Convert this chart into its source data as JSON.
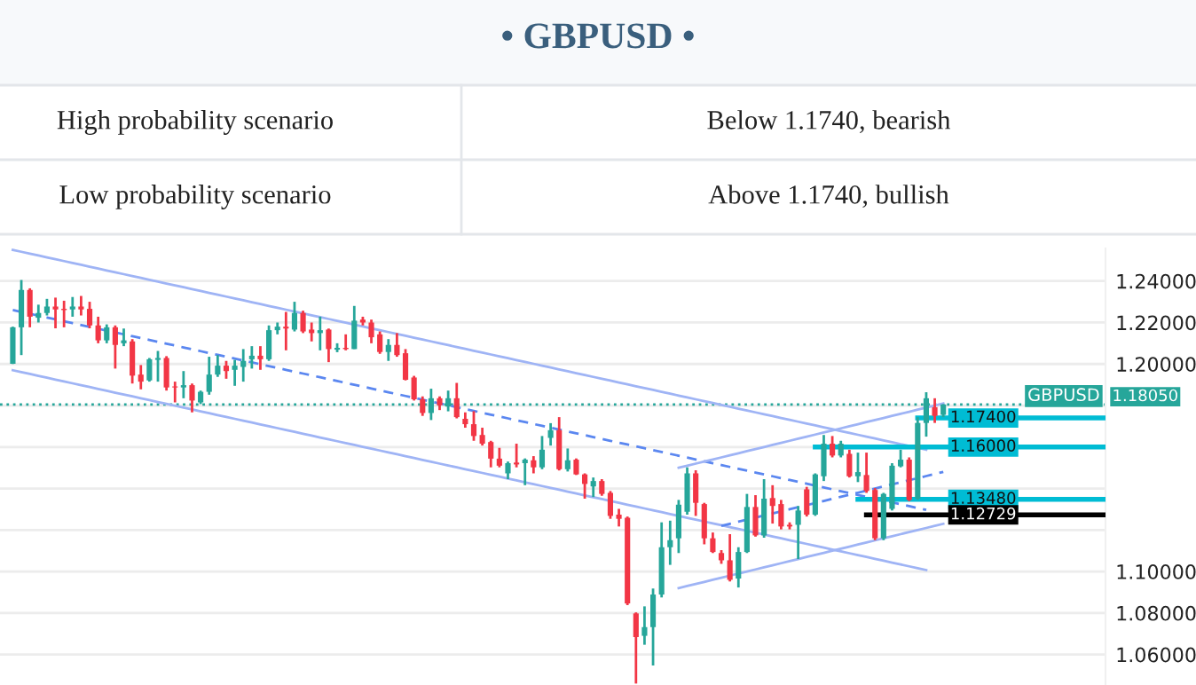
{
  "chart_data": {
    "type": "candlestick",
    "title": "• GBPUSD •",
    "annotations": [
      "High probability scenario",
      "Below 1.1740, bearish",
      "Low probability scenario",
      "Above 1.1740, bullish",
      {
        "text": "GBPUSD",
        "y": 1.1805
      }
    ],
    "categories": [
      null,
      null,
      null,
      null,
      null,
      null,
      null,
      null,
      null,
      null,
      null,
      null,
      null,
      null,
      null,
      null,
      null,
      null,
      null,
      null,
      null,
      null,
      null,
      null,
      null,
      null,
      null,
      null,
      null,
      null,
      null,
      null,
      null,
      null,
      null,
      null,
      null,
      null,
      null,
      null,
      null,
      null,
      null,
      null,
      null,
      null,
      null,
      null,
      null,
      null,
      null,
      null,
      null,
      null,
      null,
      null,
      null,
      null,
      null,
      null,
      null,
      null,
      null,
      null,
      null,
      null,
      null,
      null,
      null,
      null,
      null,
      null,
      null,
      null,
      null,
      null,
      null,
      null,
      null,
      null,
      null,
      null,
      null,
      null,
      null,
      null,
      null,
      null,
      null,
      null,
      null,
      null,
      null,
      null,
      null,
      null,
      null,
      null,
      null,
      null,
      null,
      null,
      null,
      null,
      null,
      null,
      null,
      null,
      null,
      null
    ],
    "ohlc": [
      [
        1.2001,
        1.218,
        1.2,
        1.2177
      ],
      [
        1.2177,
        1.2405,
        1.2043,
        1.2357
      ],
      [
        1.2357,
        1.2365,
        1.2177,
        1.2228
      ],
      [
        1.2223,
        1.2286,
        1.22,
        1.2246
      ],
      [
        1.2246,
        1.2314,
        1.2234,
        1.2277
      ],
      [
        1.2277,
        1.232,
        1.2172,
        1.2263
      ],
      [
        1.2266,
        1.2305,
        1.2177,
        1.226
      ],
      [
        1.2263,
        1.2323,
        1.2228,
        1.2277
      ],
      [
        1.2277,
        1.2328,
        1.2234,
        1.2263
      ],
      [
        1.2266,
        1.23,
        1.2172,
        1.2186
      ],
      [
        1.2186,
        1.2228,
        1.21,
        1.2114
      ],
      [
        1.2114,
        1.2191,
        1.21,
        1.2177
      ],
      [
        1.2177,
        1.2186,
        1.1978,
        1.2092
      ],
      [
        1.21,
        1.2171,
        1.2086,
        1.2114
      ],
      [
        1.2109,
        1.212,
        1.1906,
        1.1944
      ],
      [
        1.1949,
        1.1995,
        1.1878,
        1.1915
      ],
      [
        1.1921,
        1.2029,
        1.1915,
        1.2023
      ],
      [
        1.202,
        1.2063,
        1.1915,
        1.2029
      ],
      [
        1.2029,
        1.2038,
        1.1872,
        1.1887
      ],
      [
        1.1892,
        1.1915,
        1.1815,
        1.1887
      ],
      [
        1.1887,
        1.1966,
        1.1835,
        1.1898
      ],
      [
        1.1898,
        1.1906,
        1.1767,
        1.1824
      ],
      [
        1.1815,
        1.1872,
        1.1807,
        1.1866
      ],
      [
        1.1866,
        1.2035,
        1.1852,
        1.1949
      ],
      [
        1.1949,
        1.2043,
        1.1938,
        1.1992
      ],
      [
        1.1992,
        1.2015,
        1.1929,
        1.1966
      ],
      [
        1.1972,
        1.202,
        1.1895,
        1.1992
      ],
      [
        1.1986,
        1.2072,
        1.1915,
        1.2015
      ],
      [
        1.2023,
        1.2086,
        1.1978,
        1.204
      ],
      [
        1.204,
        1.2086,
        1.1972,
        1.2023
      ],
      [
        1.2023,
        1.2186,
        1.2015,
        1.2163
      ],
      [
        1.2163,
        1.22,
        1.2143,
        1.218
      ],
      [
        1.218,
        1.2251,
        1.2066,
        1.2171
      ],
      [
        1.2166,
        1.23,
        1.2157,
        1.2246
      ],
      [
        1.2246,
        1.2257,
        1.2149,
        1.2157
      ],
      [
        1.2166,
        1.22,
        1.2109,
        1.2149
      ],
      [
        1.2149,
        1.2228,
        1.2066,
        1.2163
      ],
      [
        1.2166,
        1.2171,
        1.2009,
        1.2072
      ],
      [
        1.2069,
        1.21,
        1.2057,
        1.2078
      ],
      [
        1.2078,
        1.2143,
        1.2066,
        1.2072
      ],
      [
        1.2072,
        1.228,
        1.2072,
        1.2209
      ],
      [
        1.2214,
        1.2228,
        1.2186,
        1.22
      ],
      [
        1.22,
        1.2214,
        1.21,
        1.2129
      ],
      [
        1.2143,
        1.2157,
        1.2049,
        1.2058
      ],
      [
        1.2058,
        1.212,
        1.2015,
        1.2092
      ],
      [
        1.2092,
        1.2149,
        1.2035,
        1.2043
      ],
      [
        1.2052,
        1.2072,
        1.1921,
        1.1924
      ],
      [
        1.1935,
        1.1943,
        1.1824,
        1.183
      ],
      [
        1.183,
        1.1844,
        1.175,
        1.1764
      ],
      [
        1.1764,
        1.1881,
        1.173,
        1.1835
      ],
      [
        1.1835,
        1.1844,
        1.1778,
        1.1801
      ],
      [
        1.1795,
        1.1872,
        1.1772,
        1.1835
      ],
      [
        1.1835,
        1.1909,
        1.1738,
        1.1744
      ],
      [
        1.1736,
        1.1767,
        1.1693,
        1.171
      ],
      [
        1.171,
        1.1773,
        1.163,
        1.1653
      ],
      [
        1.1658,
        1.1693,
        1.1607,
        1.1616
      ],
      [
        1.1624,
        1.163,
        1.1502,
        1.1544
      ],
      [
        1.1544,
        1.1596,
        1.1502,
        1.151
      ],
      [
        1.1473,
        1.153,
        1.1445,
        1.1522
      ],
      [
        1.1525,
        1.1616,
        1.1502,
        1.1516
      ],
      [
        1.1522,
        1.1545,
        1.1416,
        1.1539
      ],
      [
        1.1536,
        1.1556,
        1.1473,
        1.1502
      ],
      [
        1.1502,
        1.1653,
        1.1493,
        1.1587
      ],
      [
        1.1644,
        1.1715,
        1.1607,
        1.1681
      ],
      [
        1.1681,
        1.1744,
        1.1487,
        1.1493
      ],
      [
        1.1493,
        1.1593,
        1.1482,
        1.1536
      ],
      [
        1.1539,
        1.1545,
        1.1465,
        1.1468
      ],
      [
        1.1468,
        1.1473,
        1.1351,
        1.1422
      ],
      [
        1.141,
        1.1453,
        1.1359,
        1.1436
      ],
      [
        1.1436,
        1.1445,
        1.1365,
        1.1374
      ],
      [
        1.1379,
        1.1388,
        1.1254,
        1.1268
      ],
      [
        1.1274,
        1.1302,
        1.1217,
        1.1254
      ],
      [
        1.1259,
        1.1265,
        1.0838,
        1.0846
      ],
      [
        1.0798,
        1.0803,
        1.046,
        1.0684
      ],
      [
        1.069,
        1.0832,
        1.0647,
        1.0732
      ],
      [
        1.0732,
        1.0918,
        1.0547,
        1.0889
      ],
      [
        1.0889,
        1.1237,
        1.0875,
        1.1117
      ],
      [
        1.1117,
        1.1245,
        1.1032,
        1.1151
      ],
      [
        1.116,
        1.1345,
        1.1089,
        1.1322
      ],
      [
        1.1288,
        1.1502,
        1.1274,
        1.1473
      ],
      [
        1.1473,
        1.1488,
        1.1268,
        1.1331
      ],
      [
        1.1325,
        1.1331,
        1.1131,
        1.116
      ],
      [
        1.116,
        1.1188,
        1.1089,
        1.1094
      ],
      [
        1.1089,
        1.1103,
        1.1037,
        1.1054
      ],
      [
        1.1054,
        1.118,
        1.0952,
        1.096
      ],
      [
        1.0966,
        1.1117,
        1.0923,
        1.1094
      ],
      [
        1.1094,
        1.1374,
        1.1089,
        1.1311
      ],
      [
        1.1311,
        1.1368,
        1.1168,
        1.1174
      ],
      [
        1.1174,
        1.1445,
        1.1163,
        1.1351
      ],
      [
        1.1354,
        1.1416,
        1.1231,
        1.1316
      ],
      [
        1.1325,
        1.1345,
        1.1203,
        1.1217
      ],
      [
        1.1225,
        1.1237,
        1.1203,
        1.1217
      ],
      [
        1.1225,
        1.1316,
        1.106,
        1.1294
      ],
      [
        1.1396,
        1.1408,
        1.1265,
        1.1274
      ],
      [
        1.1274,
        1.1473,
        1.1268,
        1.1468
      ],
      [
        1.1459,
        1.1658,
        1.1436,
        1.1616
      ],
      [
        1.1616,
        1.1653,
        1.155,
        1.1559
      ],
      [
        1.1559,
        1.163,
        1.155,
        1.1616
      ],
      [
        1.1567,
        1.1587,
        1.1453,
        1.1459
      ],
      [
        1.1459,
        1.1573,
        1.1431,
        1.1479
      ],
      [
        1.1465,
        1.1573,
        1.1379,
        1.1388
      ],
      [
        1.1393,
        1.1402,
        1.1151,
        1.116
      ],
      [
        1.116,
        1.1379,
        1.1151,
        1.1374
      ],
      [
        1.1302,
        1.1522,
        1.1294,
        1.151
      ],
      [
        1.1507,
        1.1587,
        1.1502,
        1.1539
      ],
      [
        1.1539,
        1.155,
        1.1339,
        1.1345
      ],
      [
        1.1351,
        1.1744,
        1.1345,
        1.1716
      ],
      [
        1.1716,
        1.1864,
        1.165,
        1.1835
      ],
      [
        1.1792,
        1.1835,
        1.1716,
        1.175
      ],
      [
        1.1755,
        1.1807,
        1.1744,
        1.1805
      ]
    ],
    "colors": [
      "#26a69a",
      "#26a69a",
      "#f23645",
      "#26a69a",
      "#26a69a",
      "#f23645",
      "#f23645",
      "#26a69a",
      "#f23645",
      "#f23645",
      "#f23645",
      "#26a69a",
      "#f23645",
      "#26a69a",
      "#f23645",
      "#f23645",
      "#26a69a",
      "#26a69a",
      "#f23645",
      "#f23645",
      "#26a69a",
      "#f23645",
      "#26a69a",
      "#26a69a",
      "#26a69a",
      "#f23645",
      "#26a69a",
      "#26a69a",
      "#26a69a",
      "#f23645",
      "#26a69a",
      "#26a69a",
      "#f23645",
      "#26a69a",
      "#f23645",
      "#f23645",
      "#26a69a",
      "#f23645",
      "#26a69a",
      "#f23645",
      "#26a69a",
      "#f23645",
      "#f23645",
      "#f23645",
      "#26a69a",
      "#f23645",
      "#f23645",
      "#f23645",
      "#f23645",
      "#26a69a",
      "#f23645",
      "#26a69a",
      "#f23645",
      "#f23645",
      "#f23645",
      "#f23645",
      "#f23645",
      "#f23645",
      "#26a69a",
      "#f23645",
      "#26a69a",
      "#f23645",
      "#26a69a",
      "#26a69a",
      "#f23645",
      "#26a69a",
      "#f23645",
      "#f23645",
      "#26a69a",
      "#f23645",
      "#f23645",
      "#f23645",
      "#f23645",
      "#f23645",
      "#26a69a",
      "#26a69a",
      "#26a69a",
      "#26a69a",
      "#26a69a",
      "#26a69a",
      "#f23645",
      "#f23645",
      "#f23645",
      "#f23645",
      "#f23645",
      "#26a69a",
      "#26a69a",
      "#f23645",
      "#26a69a",
      "#f23645",
      "#f23645",
      "#f23645",
      "#26a69a",
      "#f23645",
      "#26a69a",
      "#26a69a",
      "#f23645",
      "#26a69a",
      "#f23645",
      "#26a69a",
      "#f23645",
      "#f23645",
      "#26a69a",
      "#26a69a",
      "#26a69a",
      "#f23645",
      "#26a69a",
      "#26a69a",
      "#f23645",
      "#26a69a"
    ],
    "series": [
      {
        "type": "line",
        "color": "#9fb4f5",
        "values": [
          1.255,
          1.2541,
          1.2532,
          1.2523,
          1.2514,
          1.2505,
          1.2496,
          1.2487,
          1.2478,
          1.2469,
          1.246,
          1.2451,
          1.2442,
          1.2433,
          1.2424,
          1.2415,
          1.2406,
          1.2397,
          1.2388,
          1.2379,
          1.237,
          1.2361,
          1.2352,
          1.2343,
          1.2334,
          1.2325,
          1.2316,
          1.2307,
          1.2298,
          1.2289,
          1.228,
          1.2271,
          1.2262,
          1.2253,
          1.2244,
          1.2235,
          1.2226,
          1.2217,
          1.2208,
          1.2199,
          1.219,
          1.2181,
          1.2172,
          1.2163,
          1.2154,
          1.2145,
          1.2136,
          1.2127,
          1.2118,
          1.2109,
          1.21,
          1.2091,
          1.2082,
          1.2073,
          1.2064,
          1.2055,
          1.2046,
          1.2037,
          1.2028,
          1.2019,
          1.201,
          1.2001,
          1.1992,
          1.1983,
          1.1974,
          1.1965,
          1.1956,
          1.1947,
          1.1938,
          1.1929,
          1.192,
          1.1911,
          1.1902,
          1.1893,
          1.1884,
          1.1875,
          1.1866,
          1.1857,
          1.1848,
          1.1839,
          1.183,
          1.1821,
          1.1812,
          1.1803,
          1.1794,
          1.1785,
          1.1776,
          1.1767,
          1.1758,
          1.1749,
          1.174,
          1.1731,
          1.1722,
          1.1713,
          1.1704,
          1.1695,
          1.1686,
          1.1677,
          1.1668,
          1.1659,
          1.165,
          1.1641,
          1.1632,
          1.1623,
          1.1614,
          1.1605,
          1.1596,
          1.1587,
          null,
          null
        ]
      },
      {
        "type": "line",
        "color": "#9fb4f5",
        "values": [
          1.197,
          1.1961,
          1.1952,
          1.1943,
          1.1934,
          1.1925,
          1.1916,
          1.1907,
          1.1898,
          1.1889,
          1.188,
          1.1871,
          1.1862,
          1.1853,
          1.1844,
          1.1835,
          1.1826,
          1.1817,
          1.1808,
          1.1799,
          1.179,
          1.1781,
          1.1772,
          1.1763,
          1.1754,
          1.1745,
          1.1736,
          1.1727,
          1.1718,
          1.1709,
          1.17,
          1.1691,
          1.1682,
          1.1673,
          1.1664,
          1.1655,
          1.1646,
          1.1637,
          1.1628,
          1.1619,
          1.161,
          1.1601,
          1.1592,
          1.1583,
          1.1574,
          1.1565,
          1.1556,
          1.1547,
          1.1538,
          1.1529,
          1.152,
          1.1511,
          1.1502,
          1.1493,
          1.1484,
          1.1475,
          1.1466,
          1.1457,
          1.1448,
          1.1439,
          1.143,
          1.1421,
          1.1412,
          1.1403,
          1.1394,
          1.1385,
          1.1376,
          1.1367,
          1.1358,
          1.1349,
          1.134,
          1.1331,
          1.1322,
          1.1313,
          1.1304,
          1.1295,
          1.1286,
          1.1277,
          1.1268,
          1.1259,
          1.125,
          1.1241,
          1.1232,
          1.1223,
          1.1214,
          1.1205,
          1.1196,
          1.1187,
          1.1178,
          1.1169,
          1.116,
          1.1151,
          1.1142,
          1.1133,
          1.1124,
          1.1115,
          1.1106,
          1.1097,
          1.1088,
          1.1079,
          1.107,
          1.1061,
          1.1052,
          1.1043,
          1.1034,
          1.1025,
          1.1016,
          1.1007,
          null,
          null
        ]
      },
      {
        "type": "line",
        "color": "#5b87f0",
        "line_style": "dashed",
        "values": [
          1.226,
          1.2251,
          1.2242,
          1.2233,
          1.2224,
          1.2215,
          1.2206,
          1.2197,
          1.2188,
          1.2179,
          1.217,
          1.2161,
          1.2152,
          1.2143,
          1.2134,
          1.2125,
          1.2116,
          1.2107,
          1.2098,
          1.2089,
          1.208,
          1.2071,
          1.2062,
          1.2053,
          1.2044,
          1.2035,
          1.2026,
          1.2017,
          1.2008,
          1.1999,
          1.199,
          1.1981,
          1.1972,
          1.1963,
          1.1954,
          1.1945,
          1.1936,
          1.1927,
          1.1918,
          1.1909,
          1.19,
          1.1891,
          1.1882,
          1.1873,
          1.1864,
          1.1855,
          1.1846,
          1.1837,
          1.1828,
          1.1819,
          1.181,
          1.1801,
          1.1792,
          1.1783,
          1.1774,
          1.1765,
          1.1756,
          1.1747,
          1.1738,
          1.1729,
          1.172,
          1.1711,
          1.1702,
          1.1693,
          1.1684,
          1.1675,
          1.1666,
          1.1657,
          1.1648,
          1.1639,
          1.163,
          1.1621,
          1.1612,
          1.1603,
          1.1594,
          1.1585,
          1.1576,
          1.1567,
          1.1558,
          1.1549,
          1.154,
          1.1531,
          1.1522,
          1.1513,
          1.1504,
          1.1495,
          1.1486,
          1.1477,
          1.1468,
          1.1459,
          1.145,
          1.1441,
          1.1432,
          1.1423,
          1.1414,
          1.1405,
          1.1396,
          1.1387,
          1.1378,
          1.1369,
          1.136,
          null,
          null,
          1.1333,
          1.1324,
          1.1315,
          1.1306,
          1.1297,
          null,
          null
        ]
      },
      {
        "type": "line",
        "color": "#9fb4f5",
        "values": [
          null,
          null,
          null,
          null,
          null,
          null,
          null,
          null,
          null,
          null,
          null,
          null,
          null,
          null,
          null,
          null,
          null,
          null,
          null,
          null,
          null,
          null,
          null,
          null,
          null,
          null,
          null,
          null,
          null,
          null,
          null,
          null,
          null,
          null,
          null,
          null,
          null,
          null,
          null,
          null,
          null,
          null,
          null,
          null,
          null,
          null,
          null,
          null,
          null,
          null,
          null,
          null,
          null,
          null,
          null,
          null,
          null,
          null,
          null,
          null,
          null,
          null,
          null,
          null,
          null,
          null,
          null,
          null,
          null,
          null,
          null,
          null,
          null,
          null,
          null,
          null,
          null,
          null,
          1.092,
          1.093,
          1.094,
          1.095,
          1.096,
          1.097,
          1.098,
          1.099,
          1.1,
          1.101,
          1.102,
          1.103,
          1.104,
          1.105,
          1.106,
          1.107,
          1.108,
          1.109,
          1.11,
          1.111,
          1.112,
          1.113,
          1.114,
          1.115,
          1.116,
          1.117,
          1.118,
          1.119,
          1.12,
          1.121,
          1.122,
          1.123
        ]
      },
      {
        "type": "line",
        "color": "#9fb4f5",
        "values": [
          null,
          null,
          null,
          null,
          null,
          null,
          null,
          null,
          null,
          null,
          null,
          null,
          null,
          null,
          null,
          null,
          null,
          null,
          null,
          null,
          null,
          null,
          null,
          null,
          null,
          null,
          null,
          null,
          null,
          null,
          null,
          null,
          null,
          null,
          null,
          null,
          null,
          null,
          null,
          null,
          null,
          null,
          null,
          null,
          null,
          null,
          null,
          null,
          null,
          null,
          null,
          null,
          null,
          null,
          null,
          null,
          null,
          null,
          null,
          null,
          null,
          null,
          null,
          null,
          null,
          null,
          null,
          null,
          null,
          null,
          null,
          null,
          null,
          null,
          null,
          null,
          null,
          null,
          1.15,
          1.151,
          1.152,
          1.153,
          1.154,
          1.155,
          1.156,
          1.157,
          1.158,
          1.159,
          1.16,
          1.161,
          1.162,
          1.163,
          1.164,
          1.165,
          1.166,
          1.167,
          1.168,
          1.169,
          1.17,
          1.171,
          1.172,
          1.173,
          1.174,
          1.175,
          1.176,
          1.177,
          1.178,
          1.179,
          1.18,
          1.181
        ]
      },
      {
        "type": "line",
        "color": "#5b87f0",
        "line_style": "dashed",
        "values": [
          null,
          null,
          null,
          null,
          null,
          null,
          null,
          null,
          null,
          null,
          null,
          null,
          null,
          null,
          null,
          null,
          null,
          null,
          null,
          null,
          null,
          null,
          null,
          null,
          null,
          null,
          null,
          null,
          null,
          null,
          null,
          null,
          null,
          null,
          null,
          null,
          null,
          null,
          null,
          null,
          null,
          null,
          null,
          null,
          null,
          null,
          null,
          null,
          null,
          null,
          null,
          null,
          null,
          null,
          null,
          null,
          null,
          null,
          null,
          null,
          null,
          null,
          null,
          null,
          null,
          null,
          null,
          null,
          null,
          null,
          null,
          null,
          null,
          null,
          null,
          null,
          null,
          null,
          null,
          null,
          null,
          null,
          null,
          1.122,
          1.123,
          1.124,
          1.125,
          1.126,
          1.127,
          1.128,
          1.129,
          1.13,
          1.131,
          1.132,
          1.133,
          1.134,
          1.135,
          1.136,
          1.137,
          1.138,
          1.139,
          1.14,
          1.141,
          1.142,
          1.143,
          1.144,
          1.145,
          1.146,
          1.147,
          1.148
        ]
      },
      {
        "type": "line",
        "color": "#00bcd4",
        "values": [
          null,
          null,
          null,
          null,
          null,
          null,
          null,
          null,
          null,
          null,
          null,
          null,
          null,
          null,
          null,
          null,
          null,
          null,
          null,
          null,
          null,
          null,
          null,
          null,
          null,
          null,
          null,
          null,
          null,
          null,
          null,
          null,
          null,
          null,
          null,
          null,
          null,
          null,
          null,
          null,
          null,
          null,
          null,
          null,
          null,
          null,
          null,
          null,
          null,
          null,
          null,
          null,
          null,
          null,
          null,
          null,
          null,
          null,
          null,
          null,
          null,
          null,
          null,
          null,
          null,
          null,
          null,
          null,
          null,
          null,
          null,
          null,
          null,
          null,
          null,
          null,
          null,
          null,
          null,
          null,
          null,
          null,
          null,
          null,
          null,
          null,
          null,
          null,
          null,
          null,
          null,
          null,
          null,
          null,
          null,
          null,
          null,
          null,
          null,
          null,
          null,
          null,
          null,
          null,
          null,
          null,
          1.174,
          1.174,
          1.174,
          1.174
        ],
        "value_labels": [
          null,
          null,
          null,
          null,
          null,
          null,
          null,
          null,
          null,
          null,
          null,
          null,
          null,
          null,
          null,
          null,
          null,
          null,
          null,
          null,
          null,
          null,
          null,
          null,
          null,
          null,
          null,
          null,
          null,
          null,
          null,
          null,
          null,
          null,
          null,
          null,
          null,
          null,
          null,
          null,
          null,
          null,
          null,
          null,
          null,
          null,
          null,
          null,
          null,
          null,
          null,
          null,
          null,
          null,
          null,
          null,
          null,
          null,
          null,
          null,
          null,
          null,
          null,
          null,
          null,
          null,
          null,
          null,
          null,
          null,
          null,
          null,
          null,
          null,
          null,
          null,
          null,
          null,
          null,
          null,
          null,
          null,
          null,
          null,
          null,
          null,
          null,
          null,
          null,
          null,
          null,
          null,
          null,
          null,
          null,
          null,
          null,
          null,
          null,
          null,
          null,
          null,
          null,
          null,
          null,
          null,
          null,
          null,
          null,
          "1.17400"
        ]
      },
      {
        "type": "line",
        "color": "#00bcd4",
        "values": [
          null,
          null,
          null,
          null,
          null,
          null,
          null,
          null,
          null,
          null,
          null,
          null,
          null,
          null,
          null,
          null,
          null,
          null,
          null,
          null,
          null,
          null,
          null,
          null,
          null,
          null,
          null,
          null,
          null,
          null,
          null,
          null,
          null,
          null,
          null,
          null,
          null,
          null,
          null,
          null,
          null,
          null,
          null,
          null,
          null,
          null,
          null,
          null,
          null,
          null,
          null,
          null,
          null,
          null,
          null,
          null,
          null,
          null,
          null,
          null,
          null,
          null,
          null,
          null,
          null,
          null,
          null,
          null,
          null,
          null,
          null,
          null,
          null,
          null,
          null,
          null,
          null,
          null,
          null,
          null,
          null,
          null,
          null,
          null,
          null,
          null,
          null,
          null,
          null,
          null,
          null,
          null,
          null,
          null,
          1.16,
          1.16,
          1.16,
          1.16,
          1.16,
          1.16,
          1.16,
          1.16,
          1.16,
          1.16,
          1.16,
          1.16,
          1.16,
          1.16,
          1.16,
          1.16
        ],
        "value_labels": [
          null,
          null,
          null,
          null,
          null,
          null,
          null,
          null,
          null,
          null,
          null,
          null,
          null,
          null,
          null,
          null,
          null,
          null,
          null,
          null,
          null,
          null,
          null,
          null,
          null,
          null,
          null,
          null,
          null,
          null,
          null,
          null,
          null,
          null,
          null,
          null,
          null,
          null,
          null,
          null,
          null,
          null,
          null,
          null,
          null,
          null,
          null,
          null,
          null,
          null,
          null,
          null,
          null,
          null,
          null,
          null,
          null,
          null,
          null,
          null,
          null,
          null,
          null,
          null,
          null,
          null,
          null,
          null,
          null,
          null,
          null,
          null,
          null,
          null,
          null,
          null,
          null,
          null,
          null,
          null,
          null,
          null,
          null,
          null,
          null,
          null,
          null,
          null,
          null,
          null,
          null,
          null,
          null,
          null,
          null,
          null,
          null,
          null,
          null,
          null,
          null,
          null,
          null,
          null,
          null,
          null,
          null,
          null,
          null,
          "1.16000"
        ]
      },
      {
        "type": "line",
        "color": "#00bcd4",
        "values": [
          null,
          null,
          null,
          null,
          null,
          null,
          null,
          null,
          null,
          null,
          null,
          null,
          null,
          null,
          null,
          null,
          null,
          null,
          null,
          null,
          null,
          null,
          null,
          null,
          null,
          null,
          null,
          null,
          null,
          null,
          null,
          null,
          null,
          null,
          null,
          null,
          null,
          null,
          null,
          null,
          null,
          null,
          null,
          null,
          null,
          null,
          null,
          null,
          null,
          null,
          null,
          null,
          null,
          null,
          null,
          null,
          null,
          null,
          null,
          null,
          null,
          null,
          null,
          null,
          null,
          null,
          null,
          null,
          null,
          null,
          null,
          null,
          null,
          null,
          null,
          null,
          null,
          null,
          null,
          null,
          null,
          null,
          null,
          null,
          null,
          null,
          null,
          null,
          null,
          null,
          null,
          null,
          null,
          null,
          null,
          null,
          null,
          null,
          null,
          1.1348,
          1.1348,
          1.1348,
          1.1348,
          1.1348,
          1.1348,
          1.1348,
          1.1348,
          1.1348,
          1.1348,
          1.1348
        ],
        "value_labels": [
          null,
          null,
          null,
          null,
          null,
          null,
          null,
          null,
          null,
          null,
          null,
          null,
          null,
          null,
          null,
          null,
          null,
          null,
          null,
          null,
          null,
          null,
          null,
          null,
          null,
          null,
          null,
          null,
          null,
          null,
          null,
          null,
          null,
          null,
          null,
          null,
          null,
          null,
          null,
          null,
          null,
          null,
          null,
          null,
          null,
          null,
          null,
          null,
          null,
          null,
          null,
          null,
          null,
          null,
          null,
          null,
          null,
          null,
          null,
          null,
          null,
          null,
          null,
          null,
          null,
          null,
          null,
          null,
          null,
          null,
          null,
          null,
          null,
          null,
          null,
          null,
          null,
          null,
          null,
          null,
          null,
          null,
          null,
          null,
          null,
          null,
          null,
          null,
          null,
          null,
          null,
          null,
          null,
          null,
          null,
          null,
          null,
          null,
          null,
          null,
          null,
          null,
          null,
          null,
          null,
          null,
          null,
          null,
          null,
          "1.13480"
        ]
      },
      {
        "type": "line",
        "color": "#000000",
        "values": [
          null,
          null,
          null,
          null,
          null,
          null,
          null,
          null,
          null,
          null,
          null,
          null,
          null,
          null,
          null,
          null,
          null,
          null,
          null,
          null,
          null,
          null,
          null,
          null,
          null,
          null,
          null,
          null,
          null,
          null,
          null,
          null,
          null,
          null,
          null,
          null,
          null,
          null,
          null,
          null,
          null,
          null,
          null,
          null,
          null,
          null,
          null,
          null,
          null,
          null,
          null,
          null,
          null,
          null,
          null,
          null,
          null,
          null,
          null,
          null,
          null,
          null,
          null,
          null,
          null,
          null,
          null,
          null,
          null,
          null,
          null,
          null,
          null,
          null,
          null,
          null,
          null,
          null,
          null,
          null,
          null,
          null,
          null,
          null,
          null,
          null,
          null,
          null,
          null,
          null,
          null,
          null,
          null,
          null,
          null,
          null,
          null,
          null,
          null,
          null,
          1.12729,
          1.12729,
          1.12729,
          1.12729,
          1.12729,
          1.12729,
          1.12729,
          1.12729,
          1.12729,
          1.12729
        ],
        "value_labels": [
          null,
          null,
          null,
          null,
          null,
          null,
          null,
          null,
          null,
          null,
          null,
          null,
          null,
          null,
          null,
          null,
          null,
          null,
          null,
          null,
          null,
          null,
          null,
          null,
          null,
          null,
          null,
          null,
          null,
          null,
          null,
          null,
          null,
          null,
          null,
          null,
          null,
          null,
          null,
          null,
          null,
          null,
          null,
          null,
          null,
          null,
          null,
          null,
          null,
          null,
          null,
          null,
          null,
          null,
          null,
          null,
          null,
          null,
          null,
          null,
          null,
          null,
          null,
          null,
          null,
          null,
          null,
          null,
          null,
          null,
          null,
          null,
          null,
          null,
          null,
          null,
          null,
          null,
          null,
          null,
          null,
          null,
          null,
          null,
          null,
          null,
          null,
          null,
          null,
          null,
          null,
          null,
          null,
          null,
          null,
          null,
          null,
          null,
          null,
          null,
          null,
          null,
          null,
          null,
          null,
          null,
          null,
          null,
          null,
          "1.12729"
        ]
      }
    ],
    "ref_lines": [
      {
        "axis": "y",
        "value": 1.1805,
        "label": "1.18050",
        "color": "#26a69a",
        "line_style": "dotted"
      }
    ],
    "ylim": [
      1.0453,
      1.2557
    ],
    "yticks": [
      {
        "value": 1.06,
        "label": "1.06000"
      },
      {
        "value": 1.08,
        "label": "1.08000"
      },
      {
        "value": 1.1,
        "label": "1.10000"
      },
      {
        "value": 1.12,
        "label": null
      },
      {
        "value": 1.14,
        "label": null
      },
      {
        "value": 1.16,
        "label": null
      },
      {
        "value": 1.18,
        "label": null
      },
      {
        "value": 1.2,
        "label": "1.20000"
      },
      {
        "value": 1.22,
        "label": "1.22000"
      },
      {
        "value": 1.24,
        "label": "1.24000"
      }
    ],
    "tick_labels": "y",
    "grid": "y"
  }
}
